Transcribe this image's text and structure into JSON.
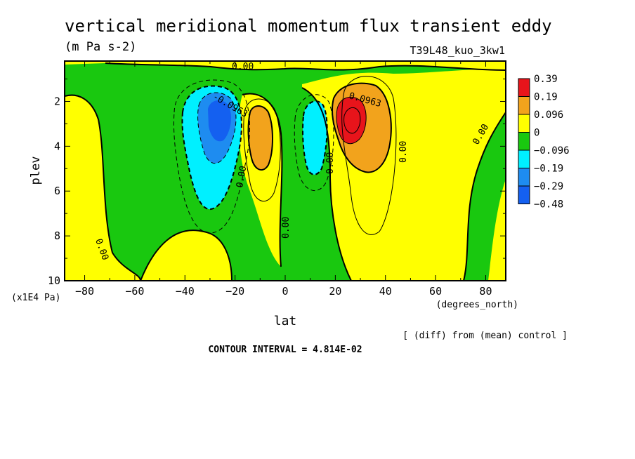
{
  "chart_data": {
    "type": "heatmap",
    "title": "vertical meridional momentum flux transient eddy",
    "units": "(m Pa s-2)",
    "run_label": "T39L48_kuo_3kw1",
    "xlabel": "lat",
    "xunits": "(degrees_north)",
    "ylabel": "plev",
    "yunits": "(x1E4 Pa)",
    "xlim": [
      -88,
      88
    ],
    "ylim": [
      10,
      0.2
    ],
    "x_ticks": [
      -80,
      -60,
      -40,
      -20,
      0,
      20,
      40,
      60,
      80
    ],
    "x_tick_labels": [
      "−80",
      "−60",
      "−40",
      "−20",
      "0",
      "20",
      "40",
      "60",
      "80"
    ],
    "y_ticks": [
      2,
      4,
      6,
      8,
      10
    ],
    "contour_interval_text": "CONTOUR INTERVAL = 4.814E-02",
    "note": "[ (diff) from (mean) control ]",
    "colorbar": {
      "labels": [
        "0.39",
        "0.19",
        "0.096",
        "0",
        "−0.096",
        "−0.19",
        "−0.29",
        "−0.48"
      ],
      "colors": [
        "#e8141b",
        "#f2a31c",
        "#ffff00",
        "#19c80f",
        "#00f0ff",
        "#1e8cf0",
        "#1460f0"
      ]
    },
    "contour_labels": [
      {
        "text": "0.00",
        "x": -20,
        "y": 5.5
      },
      {
        "text": "0.00",
        "x": 0,
        "y": 7.5
      },
      {
        "text": "0.00",
        "x": 18,
        "y": 4.5
      },
      {
        "text": "0.00",
        "x": 47,
        "y": 4.0
      },
      {
        "text": "0.00",
        "x": 80,
        "y": 3.5
      },
      {
        "text": "0.00",
        "x": -75,
        "y": 8.5
      },
      {
        "text": "0.00",
        "x": -17,
        "y": 0.4
      },
      {
        "text": "-0.0963",
        "x": -30,
        "y": 1.8
      },
      {
        "text": "0.0963",
        "x": 30,
        "y": 1.7
      }
    ],
    "features": [
      {
        "sign": "negative",
        "center_lat": -27,
        "center_plev": 3.2,
        "min_value": -0.48
      },
      {
        "sign": "positive",
        "center_lat": -10,
        "center_plev": 3.5,
        "max_value": 0.19
      },
      {
        "sign": "negative",
        "center_lat": 12,
        "center_plev": 3.5,
        "min_value": -0.19
      },
      {
        "sign": "positive",
        "center_lat": 25,
        "center_plev": 2.8,
        "max_value": 0.39
      }
    ]
  }
}
